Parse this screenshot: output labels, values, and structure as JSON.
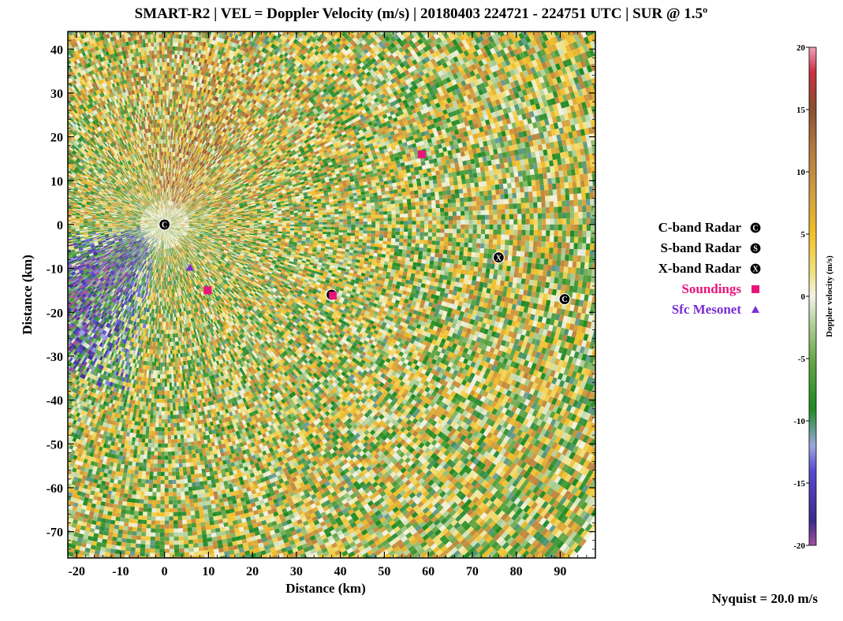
{
  "title": "SMART-R2 | VEL = Doppler Velocity (m/s) | 20180403 224721 - 224751 UTC | SUR @ 1.5º",
  "chart_data": {
    "type": "heatmap",
    "title": "SMART-R2 | VEL = Doppler Velocity (m/s) | 20180403 224721 - 224751 UTC | SUR @ 1.5º",
    "xlabel": "Distance (km)",
    "ylabel": "Distance (km)",
    "xlim": [
      -22,
      98
    ],
    "ylim": [
      -76,
      44
    ],
    "xticks": [
      -20,
      -10,
      0,
      10,
      20,
      30,
      40,
      50,
      60,
      70,
      80,
      90
    ],
    "yticks": [
      40,
      30,
      20,
      10,
      0,
      -10,
      -20,
      -30,
      -40,
      -50,
      -60,
      -70
    ],
    "radar_origin": [
      0,
      0
    ],
    "max_range_km": 120,
    "colorbar": {
      "label": "Doppler velocity (m/s)",
      "range": [
        -20,
        20
      ],
      "ticks": [
        20,
        15,
        10,
        5,
        0,
        -5,
        -10,
        -15,
        -20
      ],
      "colors": [
        {
          "v": -20,
          "c": "#a0509a"
        },
        {
          "v": -18,
          "c": "#3a2a8c"
        },
        {
          "v": -14,
          "c": "#5a4ad0"
        },
        {
          "v": -12,
          "c": "#9aa8dc"
        },
        {
          "v": -9,
          "c": "#1e8a22"
        },
        {
          "v": -5,
          "c": "#6aa84a"
        },
        {
          "v": -2,
          "c": "#b8d4a0"
        },
        {
          "v": 0,
          "c": "#f3f3e6"
        },
        {
          "v": 2,
          "c": "#f0e080"
        },
        {
          "v": 5,
          "c": "#f2c12a"
        },
        {
          "v": 8,
          "c": "#d4a040"
        },
        {
          "v": 12,
          "c": "#b07840"
        },
        {
          "v": 15,
          "c": "#8a5030"
        },
        {
          "v": 18,
          "c": "#c83040"
        },
        {
          "v": 20,
          "c": "#f0a0b8"
        }
      ]
    },
    "annotations": [
      {
        "type": "C-band Radar",
        "x": 0,
        "y": 0
      },
      {
        "type": "C-band Radar",
        "x": 38,
        "y": -16
      },
      {
        "type": "C-band Radar",
        "x": 91,
        "y": -17
      },
      {
        "type": "X-band Radar",
        "x": 76,
        "y": -7.5
      },
      {
        "type": "Soundings",
        "x": 58.5,
        "y": 16
      },
      {
        "type": "Soundings",
        "x": 9.8,
        "y": -15
      },
      {
        "type": "Soundings",
        "x": 38.3,
        "y": -16.2
      },
      {
        "type": "Sfc Mesonet",
        "x": 5.8,
        "y": -9.8
      }
    ]
  },
  "legend": {
    "items": [
      {
        "label": "C-band Radar",
        "color": "#000000",
        "symbol": "C"
      },
      {
        "label": "S-band Radar",
        "color": "#000000",
        "symbol": "S"
      },
      {
        "label": "X-band Radar",
        "color": "#000000",
        "symbol": "X"
      },
      {
        "label": "Soundings",
        "color": "#e8147a",
        "symbol": "square"
      },
      {
        "label": "Sfc Mesonet",
        "color": "#7a2ed8",
        "symbol": "triangle"
      }
    ]
  },
  "footer": {
    "nyquist": "Nyquist = 20.0 m/s"
  }
}
